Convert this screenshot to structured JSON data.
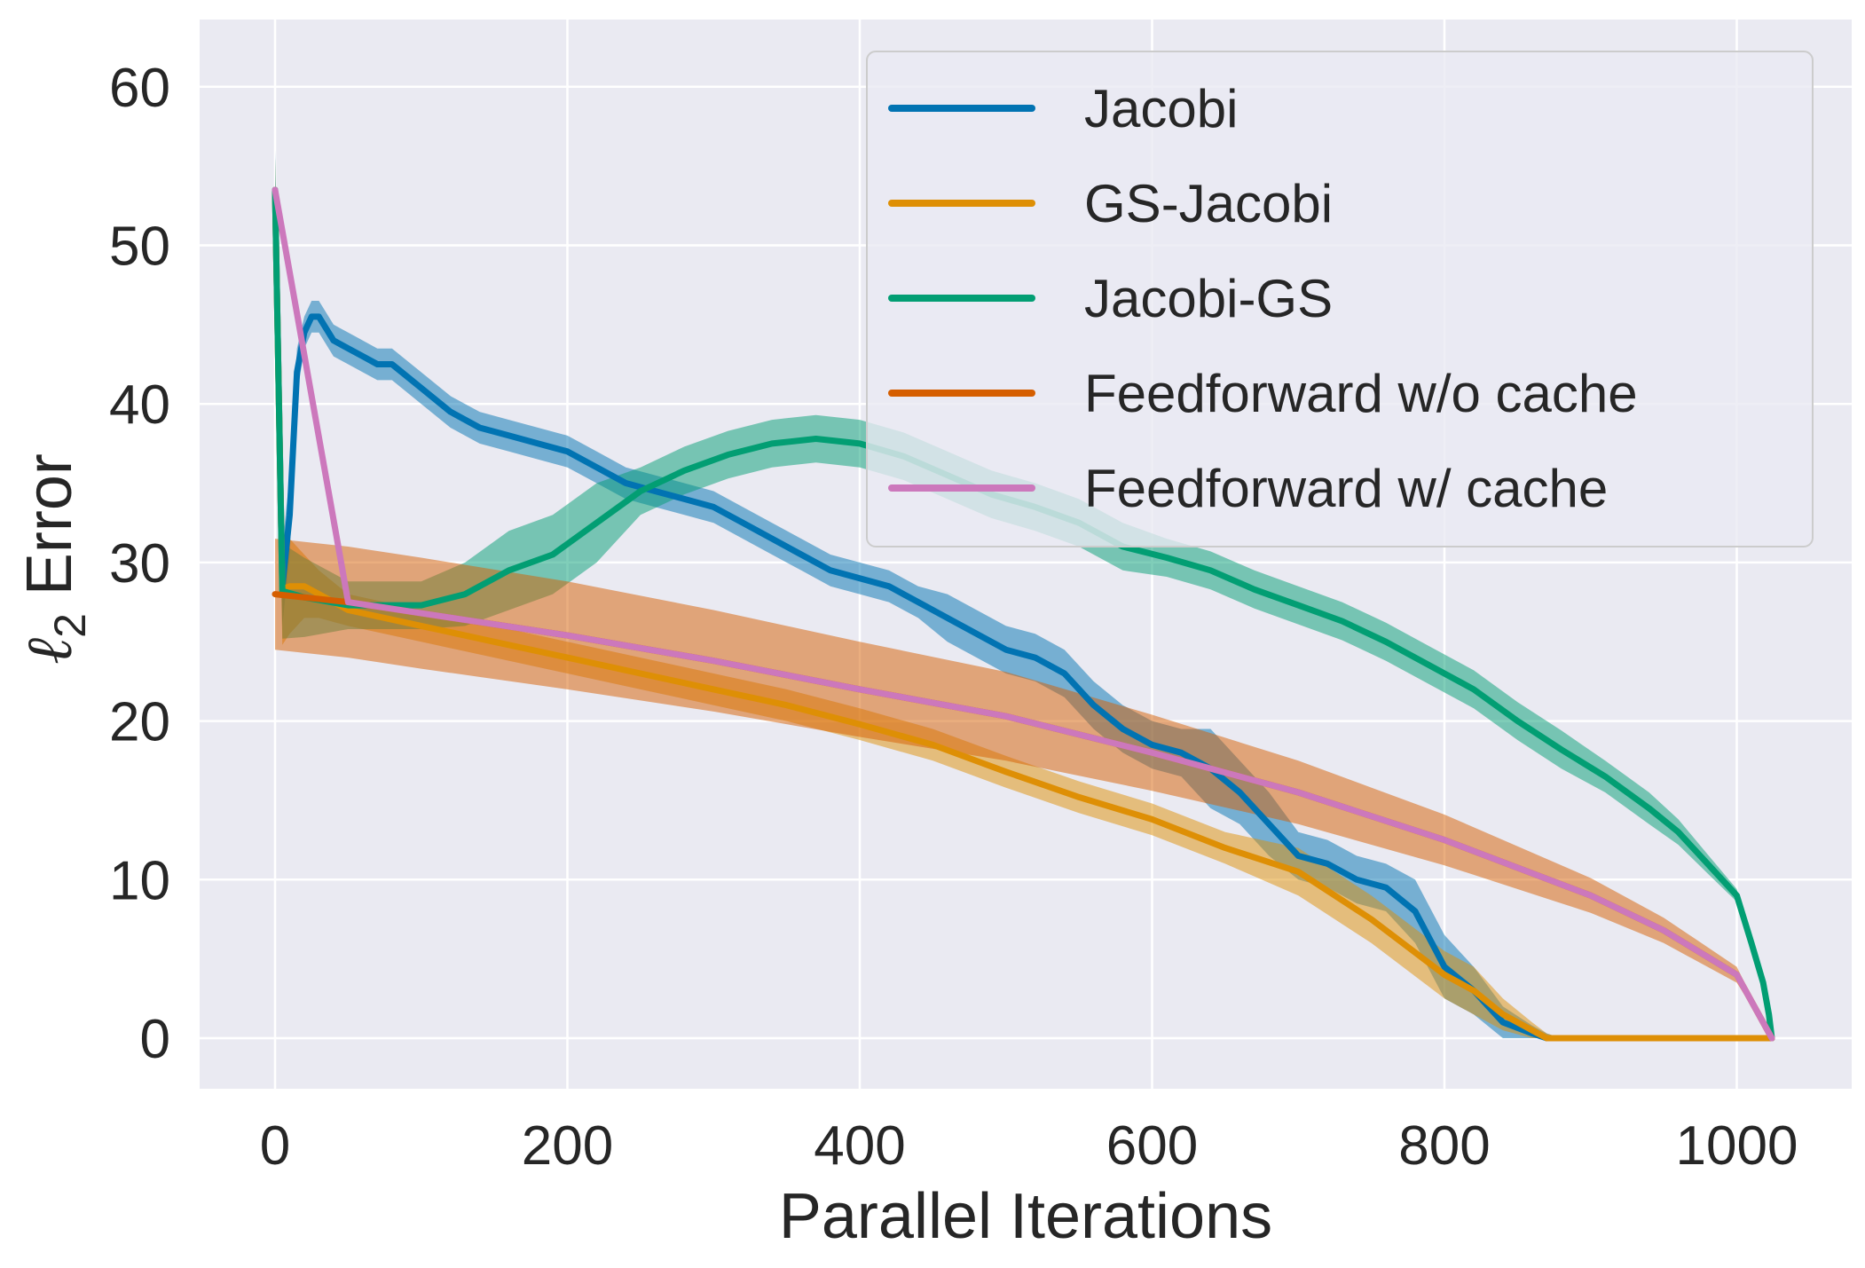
{
  "chart_data": {
    "type": "line",
    "title": "",
    "xlabel": "Parallel Iterations",
    "ylabel": "Error",
    "ylabel_symbol": "ℓ",
    "ylabel_subscript": "2",
    "xlim": [
      -50,
      1075
    ],
    "ylim": [
      -3.5,
      64.5
    ],
    "xticks": [
      0,
      200,
      400,
      600,
      800,
      1000
    ],
    "xtick_labels": [
      "0",
      "200",
      "400",
      "600",
      "800",
      "1000"
    ],
    "yticks": [
      0,
      10,
      20,
      30,
      40,
      50,
      60
    ],
    "ytick_labels": [
      "0",
      "10",
      "20",
      "30",
      "40",
      "50",
      "60"
    ],
    "grid": true,
    "legend_position": "top-right",
    "series": [
      {
        "name": "Jacobi",
        "color": "#0173b2",
        "x": [
          0,
          5,
          10,
          15,
          20,
          25,
          30,
          40,
          50,
          60,
          70,
          80,
          100,
          120,
          140,
          160,
          180,
          200,
          220,
          240,
          260,
          280,
          300,
          320,
          340,
          360,
          380,
          400,
          420,
          440,
          460,
          480,
          500,
          520,
          540,
          560,
          580,
          600,
          620,
          640,
          660,
          680,
          700,
          720,
          740,
          760,
          780,
          800,
          820,
          840,
          860,
          870,
          880,
          900,
          950,
          1000,
          1024
        ],
        "y": [
          53.5,
          28.5,
          33,
          42,
          44.5,
          45.5,
          45.5,
          44,
          43.5,
          43,
          42.5,
          42.5,
          41,
          39.5,
          38.5,
          38,
          37.5,
          37,
          36,
          35,
          34.5,
          34,
          33.5,
          32.5,
          31.5,
          30.5,
          29.5,
          29,
          28.5,
          27.5,
          26.5,
          25.5,
          24.5,
          24,
          23,
          21,
          19.5,
          18.5,
          18,
          17,
          15.5,
          13.5,
          11.5,
          11,
          10,
          9.5,
          8,
          4.5,
          3,
          1,
          0.3,
          0,
          0,
          0,
          0,
          0,
          0
        ],
        "band": [
          2.5,
          2.5,
          2.5,
          1.5,
          1,
          1,
          1,
          1,
          1,
          1,
          1,
          1,
          1,
          1,
          1,
          1,
          1,
          1,
          1,
          1,
          1,
          1,
          1,
          1,
          1,
          1,
          1,
          1,
          1,
          1,
          1.5,
          1.5,
          1.5,
          1.5,
          1.5,
          1.5,
          1.5,
          1.5,
          1.5,
          2.5,
          2,
          2,
          1.5,
          1.5,
          1.5,
          1.5,
          2,
          2,
          1.5,
          1,
          0.5,
          0.3,
          0,
          0,
          0,
          0,
          0
        ]
      },
      {
        "name": "GS-Jacobi",
        "color": "#de8f05",
        "x": [
          0,
          5,
          10,
          20,
          30,
          50,
          100,
          150,
          200,
          250,
          300,
          350,
          400,
          450,
          500,
          550,
          600,
          650,
          700,
          750,
          800,
          820,
          840,
          860,
          870,
          880,
          900,
          950,
          1000,
          1024
        ],
        "y": [
          53.5,
          28.3,
          28.5,
          28.5,
          28,
          27,
          26,
          25,
          24,
          23,
          22,
          21,
          19.8,
          18.5,
          16.8,
          15.2,
          13.8,
          12,
          10.5,
          7.5,
          4,
          3,
          1.5,
          0.5,
          0,
          0,
          0,
          0,
          0,
          0
        ],
        "band": [
          2,
          3.5,
          3,
          2,
          1.5,
          1,
          1,
          1,
          1,
          1,
          1,
          1,
          1,
          1,
          1,
          1,
          1,
          1,
          1.5,
          1.5,
          1.5,
          1.5,
          1,
          0.5,
          0.3,
          0,
          0,
          0,
          0,
          0
        ]
      },
      {
        "name": "Jacobi-GS",
        "color": "#029e73",
        "x": [
          0,
          5,
          20,
          50,
          100,
          130,
          160,
          190,
          220,
          250,
          280,
          310,
          340,
          370,
          400,
          430,
          460,
          490,
          520,
          550,
          580,
          610,
          640,
          670,
          700,
          730,
          760,
          790,
          820,
          850,
          880,
          910,
          940,
          960,
          980,
          1000,
          1010,
          1018,
          1022,
          1024
        ],
        "y": [
          53.5,
          28.2,
          27.8,
          27.3,
          27.3,
          28,
          29.5,
          30.5,
          32.5,
          34.5,
          35.8,
          36.8,
          37.5,
          37.8,
          37.5,
          36.7,
          35.5,
          34.3,
          33.5,
          32.5,
          31,
          30.3,
          29.5,
          28.3,
          27.3,
          26.3,
          25,
          23.5,
          22,
          20,
          18.2,
          16.5,
          14.5,
          13,
          11,
          9,
          6,
          3.5,
          1.5,
          0
        ],
        "band": [
          2,
          3,
          2.5,
          1.5,
          1.5,
          2,
          2.5,
          2.5,
          2.5,
          1.5,
          1.5,
          1.5,
          1.5,
          1.5,
          1.5,
          1.5,
          1.5,
          1.5,
          1.5,
          1.5,
          1.5,
          1.2,
          1.2,
          1.2,
          1.2,
          1.2,
          1.2,
          1.2,
          1.2,
          1.2,
          1.2,
          1,
          1,
          0.8,
          0.6,
          0.4,
          0.3,
          0.2,
          0.1,
          0
        ]
      },
      {
        "name": "Feedforward w/o cache",
        "color": "#d55e00",
        "x": [
          0,
          50,
          100,
          200,
          300,
          400,
          500,
          600,
          700,
          800,
          900,
          950,
          1000,
          1024
        ],
        "y": [
          28,
          27.5,
          26.8,
          25.4,
          23.8,
          22,
          20.3,
          18,
          15.5,
          12.5,
          9,
          6.8,
          4,
          0
        ],
        "band": [
          3.5,
          3.5,
          3.5,
          3.4,
          3.2,
          3,
          2.8,
          2.4,
          2,
          1.6,
          1.1,
          0.8,
          0.5,
          0
        ]
      },
      {
        "name": "Feedforward w/ cache",
        "color": "#cc78bc",
        "x": [
          0,
          50,
          100,
          200,
          300,
          400,
          500,
          600,
          700,
          800,
          900,
          950,
          1000,
          1024
        ],
        "y": [
          53.5,
          27.5,
          26.8,
          25.4,
          23.8,
          22,
          20.3,
          18,
          15.5,
          12.5,
          9,
          6.8,
          4,
          0
        ],
        "band": [
          0,
          0.2,
          0.2,
          0.2,
          0.2,
          0.2,
          0.2,
          0.2,
          0.2,
          0.2,
          0.2,
          0.2,
          0.2,
          0
        ]
      }
    ]
  }
}
